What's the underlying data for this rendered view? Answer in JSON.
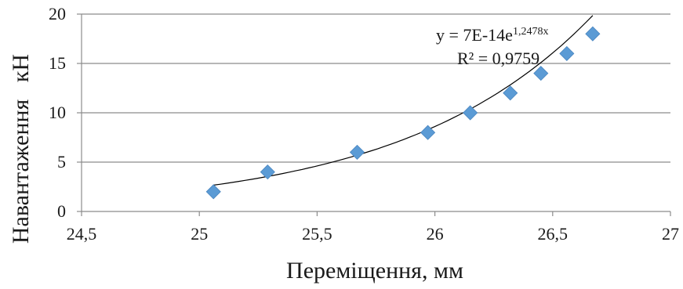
{
  "chart_data": {
    "type": "scatter",
    "xlabel": "Переміщення, мм",
    "ylabel": "Навантаження кН",
    "xlim": [
      24.5,
      27
    ],
    "ylim": [
      0,
      20
    ],
    "xticks": [
      "24,5",
      "25",
      "25,5",
      "26",
      "26,5",
      "27"
    ],
    "yticks": [
      "0",
      "5",
      "10",
      "15",
      "20"
    ],
    "grid": "horizontal",
    "legend": "none",
    "series": [
      {
        "x": [
          25.06,
          25.29,
          25.67,
          25.97,
          26.15,
          26.32,
          26.45,
          26.56,
          26.67
        ],
        "y": [
          2,
          4,
          6,
          8,
          10,
          12,
          14,
          16,
          18
        ],
        "marker": "diamond",
        "color": "#5b9bd5"
      }
    ],
    "trendline": {
      "type": "exponential",
      "x_range": [
        25.06,
        26.67
      ],
      "coefficient_a": 7e-14,
      "coefficient_b": 1.2478,
      "color": "#000000"
    },
    "annotations": {
      "equation_base": "y = 7E-14e",
      "equation_exponent": "1,2478x",
      "r_squared": "R² = 0,9759"
    }
  }
}
